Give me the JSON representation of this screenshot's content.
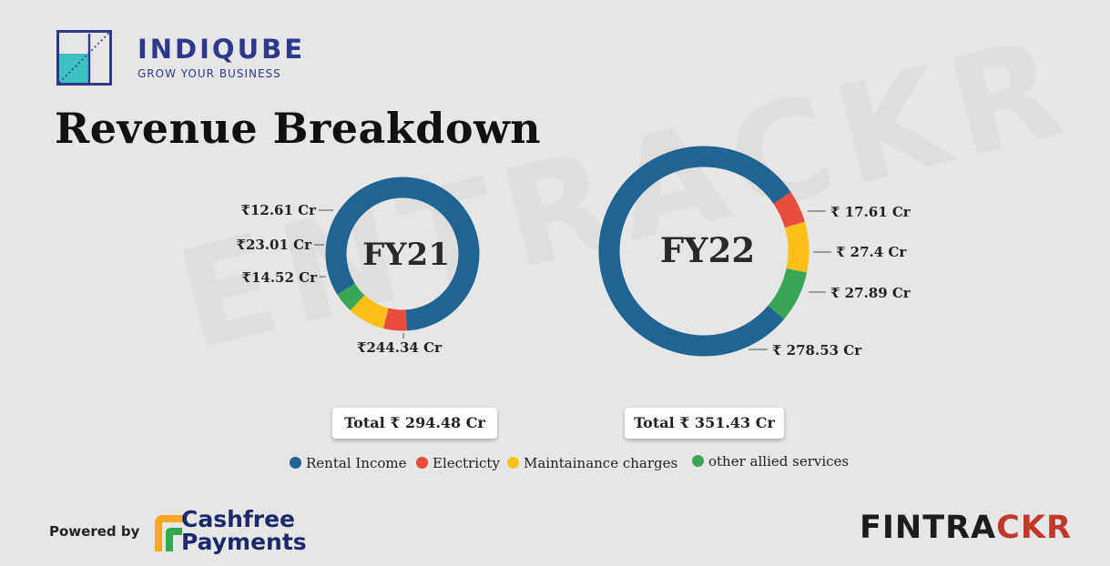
{
  "brand": {
    "name": "INDIQUBE",
    "tagline": "GROW YOUR BUSINESS",
    "colors": {
      "navy": "#2d3a8c",
      "teal": "#3ebfc0"
    }
  },
  "title": "Revenue Breakdown",
  "watermark": "ENTRACKR",
  "colors": {
    "rental": "#1f6492",
    "electricity": "#e74c3c",
    "maintenance": "#fbbf16",
    "allied": "#3aa655"
  },
  "legend": [
    {
      "label": "Rental Income",
      "color": "#1f6492"
    },
    {
      "label": "Electricty",
      "color": "#e74c3c"
    },
    {
      "label": "Maintainance charges",
      "color": "#fbbf16"
    },
    {
      "label": "other allied services",
      "color": "#3aa655"
    }
  ],
  "chart_data": [
    {
      "type": "pie",
      "variant": "donut",
      "title": "FY21",
      "total_label": "Total ₹ 294.48 Cr",
      "slices": [
        {
          "name": "Rental Income",
          "value": 244.34,
          "label": "₹244.34 Cr",
          "color": "#1f6492"
        },
        {
          "name": "Electricty",
          "value": 14.52,
          "label": "₹14.52 Cr",
          "color": "#e74c3c"
        },
        {
          "name": "Maintainance charges",
          "value": 23.01,
          "label": "₹23.01 Cr",
          "color": "#fbbf16"
        },
        {
          "name": "other allied services",
          "value": 12.61,
          "label": "₹12.61 Cr",
          "color": "#3aa655"
        }
      ]
    },
    {
      "type": "pie",
      "variant": "donut",
      "title": "FY22",
      "total_label": "Total ₹ 351.43 Cr",
      "slices": [
        {
          "name": "Electricty",
          "value": 17.61,
          "label": "₹ 17.61 Cr",
          "color": "#e74c3c"
        },
        {
          "name": "Maintainance charges",
          "value": 27.4,
          "label": "₹ 27.4 Cr",
          "color": "#fbbf16"
        },
        {
          "name": "other allied services",
          "value": 27.89,
          "label": "₹ 27.89 Cr",
          "color": "#3aa655"
        },
        {
          "name": "Rental Income",
          "value": 278.53,
          "label": "₹ 278.53 Cr",
          "color": "#1f6492"
        }
      ]
    }
  ],
  "footer": {
    "powered_by": "Powered by",
    "sponsor_name": "Cashfree\nPayments",
    "sponsor_colors": {
      "orange": "#f5a623",
      "green": "#2eaa4f",
      "navy": "#1b2a6b"
    },
    "publisher_part1": "FINTRA",
    "publisher_part2": "CKR"
  }
}
